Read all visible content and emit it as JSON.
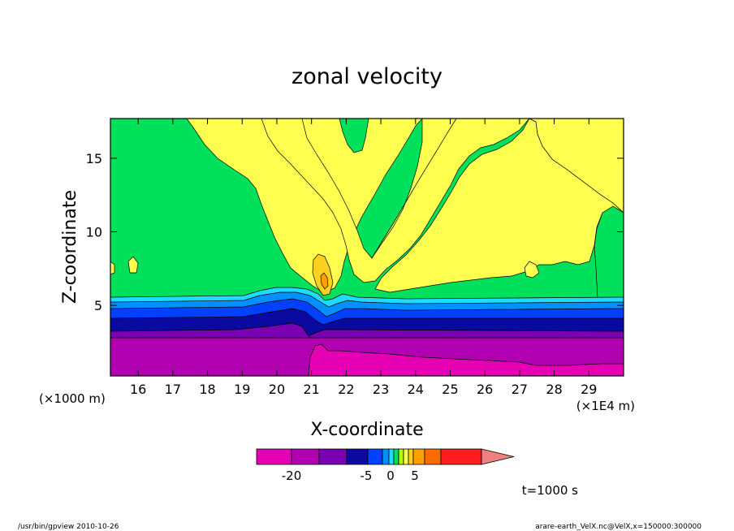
{
  "chart_data": {
    "type": "contour",
    "title": "zonal velocity",
    "xlabel": "X-coordinate",
    "ylabel": "Z-coordinate",
    "x_unit_left": "(×1000 m)",
    "x_unit_right": "(×1E4 m)",
    "xlim": [
      15.2,
      30.0
    ],
    "ylim": [
      0.2,
      17.7
    ],
    "x_ticks": [
      16,
      17,
      18,
      19,
      20,
      21,
      22,
      23,
      24,
      25,
      26,
      27,
      28,
      29
    ],
    "x_tick_labels": [
      "16",
      "17",
      "18",
      "19",
      "20",
      "21",
      "22",
      "23",
      "24",
      "25",
      "26",
      "27",
      "28",
      "29"
    ],
    "y_ticks": [
      5,
      10,
      15
    ],
    "y_tick_labels": [
      "5",
      "10",
      "15"
    ],
    "colorbar": {
      "colors": [
        "#e600b4",
        "#b000b0",
        "#7a00b4",
        "#0a0aa0",
        "#0040ff",
        "#0090ff",
        "#1edcff",
        "#00e05a",
        "#b4ff00",
        "#ffff50",
        "#ffd020",
        "#ffa000",
        "#ff6a00",
        "#ff1e1e",
        "#f08080"
      ],
      "tick_labels": [
        "-20",
        "-5",
        "0",
        "5"
      ]
    },
    "time_label": "t=1000 s",
    "footer_left": "/usr/bin/gpview  2010-10-26",
    "footer_right": "arare-earth_VelX.nc@VelX,x=150000:300000"
  }
}
